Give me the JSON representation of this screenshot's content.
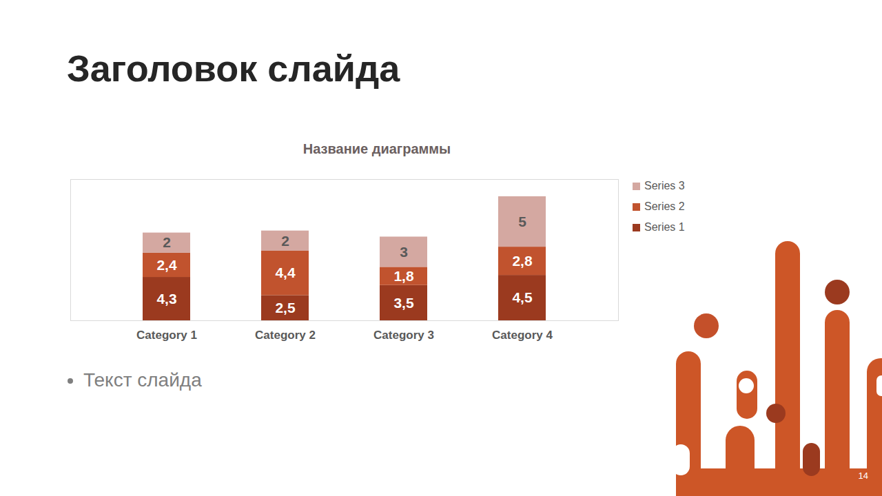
{
  "slide": {
    "title": "Заголовок слайда",
    "bullet": "Текст слайда",
    "page": "14"
  },
  "chart_data": {
    "type": "bar",
    "title": "Название диаграммы",
    "stacked": true,
    "data_labels": true,
    "legend": "right",
    "tick_labels": "x",
    "grid": false,
    "ylim": [
      0,
      14
    ],
    "categories": [
      "Category 1",
      "Category 2",
      "Category 3",
      "Category 4"
    ],
    "series": [
      {
        "name": "Series 1",
        "color": "#9b3a1f",
        "values": [
          4.3,
          2.5,
          3.5,
          4.5
        ],
        "value_labels": [
          "4,3",
          "2,5",
          "3,5",
          "4,5"
        ]
      },
      {
        "name": "Series 2",
        "color": "#c1532e",
        "values": [
          2.4,
          4.4,
          1.8,
          2.8
        ],
        "value_labels": [
          "2,4",
          "4,4",
          "1,8",
          "2,8"
        ]
      },
      {
        "name": "Series 3",
        "color": "#d4a8a1",
        "values": [
          2,
          2,
          3,
          5
        ]
      }
    ]
  }
}
